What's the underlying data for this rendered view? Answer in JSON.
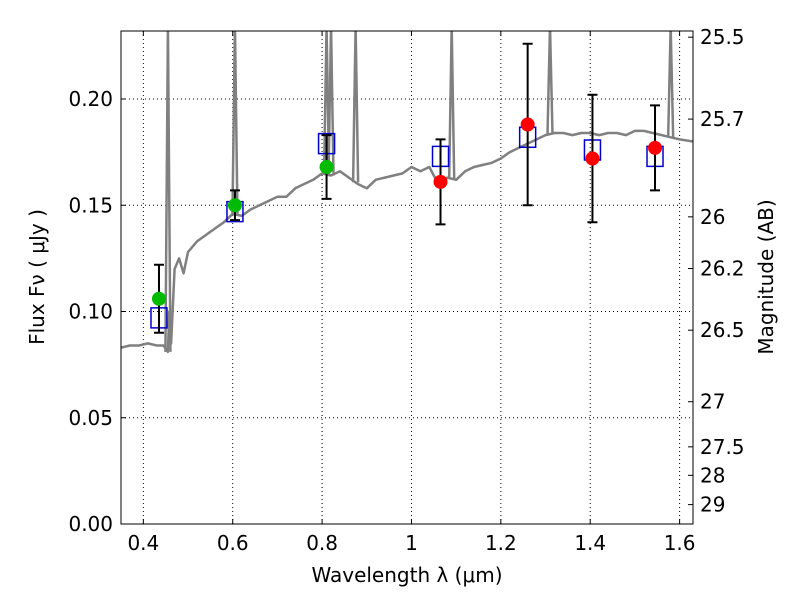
{
  "chart_data": {
    "type": "scatter",
    "title": "",
    "xlabel": "Wavelength  λ (μm)",
    "ylabel": "Flux  Fν  ( μJy )",
    "y2label": "Magnitude (AB)",
    "xlim": [
      0.35,
      1.63
    ],
    "ylim": [
      0.0,
      0.232
    ],
    "grid": true,
    "x_ticks": [
      0.4,
      0.6,
      0.8,
      1.0,
      1.2,
      1.4,
      1.6
    ],
    "x_tick_labels": [
      "0.4",
      "0.6",
      "0.8",
      "1",
      "1.2",
      "1.4",
      "1.6"
    ],
    "y_ticks": [
      0.0,
      0.05,
      0.1,
      0.15,
      0.2
    ],
    "y_tick_labels": [
      "0.00",
      "0.05",
      "0.10",
      "0.15",
      "0.20"
    ],
    "right_axis": {
      "scale": "AB magnitude",
      "tick_labels": [
        "25.5",
        "25.7",
        "26",
        "26.2",
        "26.5",
        "27",
        "27.5",
        "28",
        "29"
      ],
      "tick_values": [
        25.5,
        25.7,
        26.0,
        26.2,
        26.5,
        27.0,
        27.5,
        28.0,
        29.0
      ]
    },
    "colors": {
      "model": "#808080",
      "model_photometry": "#0000cc",
      "observed_green": "#00bb00",
      "observed_red": "#ff0000",
      "errorbar": "#000000"
    },
    "model_spectrum": {
      "x": [
        0.35,
        0.37,
        0.39,
        0.41,
        0.43,
        0.445,
        0.455,
        0.458,
        0.462,
        0.47,
        0.48,
        0.49,
        0.5,
        0.52,
        0.54,
        0.56,
        0.58,
        0.6,
        0.62,
        0.64,
        0.66,
        0.68,
        0.7,
        0.72,
        0.74,
        0.76,
        0.78,
        0.8,
        0.82,
        0.84,
        0.86,
        0.88,
        0.9,
        0.92,
        0.94,
        0.96,
        0.98,
        1.0,
        1.02,
        1.04,
        1.06,
        1.08,
        1.1,
        1.12,
        1.14,
        1.16,
        1.18,
        1.2,
        1.22,
        1.24,
        1.26,
        1.28,
        1.3,
        1.32,
        1.34,
        1.36,
        1.38,
        1.4,
        1.42,
        1.44,
        1.46,
        1.48,
        1.5,
        1.52,
        1.54,
        1.56,
        1.58,
        1.6,
        1.63
      ],
      "y": [
        0.083,
        0.084,
        0.084,
        0.085,
        0.084,
        0.084,
        0.081,
        0.1,
        0.085,
        0.12,
        0.125,
        0.118,
        0.128,
        0.133,
        0.136,
        0.139,
        0.142,
        0.146,
        0.145,
        0.148,
        0.15,
        0.152,
        0.154,
        0.154,
        0.158,
        0.16,
        0.162,
        0.165,
        0.164,
        0.166,
        0.163,
        0.16,
        0.158,
        0.162,
        0.163,
        0.164,
        0.165,
        0.168,
        0.166,
        0.168,
        0.16,
        0.163,
        0.162,
        0.166,
        0.168,
        0.169,
        0.17,
        0.172,
        0.175,
        0.177,
        0.179,
        0.181,
        0.183,
        0.184,
        0.184,
        0.183,
        0.184,
        0.184,
        0.183,
        0.184,
        0.184,
        0.183,
        0.185,
        0.185,
        0.184,
        0.183,
        0.182,
        0.181,
        0.18
      ],
      "spikes": [
        {
          "x": 0.455,
          "peak": 0.232
        },
        {
          "x": 0.605,
          "peak": 0.232
        },
        {
          "x": 0.81,
          "peak": 0.232
        },
        {
          "x": 0.82,
          "peak": 0.232
        },
        {
          "x": 0.875,
          "peak": 0.232
        },
        {
          "x": 1.09,
          "peak": 0.232
        },
        {
          "x": 1.31,
          "peak": 0.232
        },
        {
          "x": 1.58,
          "peak": 0.232
        }
      ]
    },
    "model_photometry": {
      "x": [
        0.435,
        0.605,
        0.81,
        1.065,
        1.26,
        1.405,
        1.545
      ],
      "y": [
        0.097,
        0.147,
        0.179,
        0.173,
        0.182,
        0.176,
        0.173
      ]
    },
    "observed_photometry": [
      {
        "x": 0.435,
        "y": 0.106,
        "err": 0.016,
        "color": "green"
      },
      {
        "x": 0.605,
        "y": 0.15,
        "err": 0.007,
        "color": "green"
      },
      {
        "x": 0.81,
        "y": 0.168,
        "err": 0.015,
        "color": "green"
      },
      {
        "x": 1.065,
        "y": 0.161,
        "err": 0.02,
        "color": "red"
      },
      {
        "x": 1.26,
        "y": 0.188,
        "err": 0.038,
        "color": "red"
      },
      {
        "x": 1.405,
        "y": 0.172,
        "err": 0.03,
        "color": "red"
      },
      {
        "x": 1.545,
        "y": 0.177,
        "err": 0.02,
        "color": "red"
      }
    ]
  }
}
